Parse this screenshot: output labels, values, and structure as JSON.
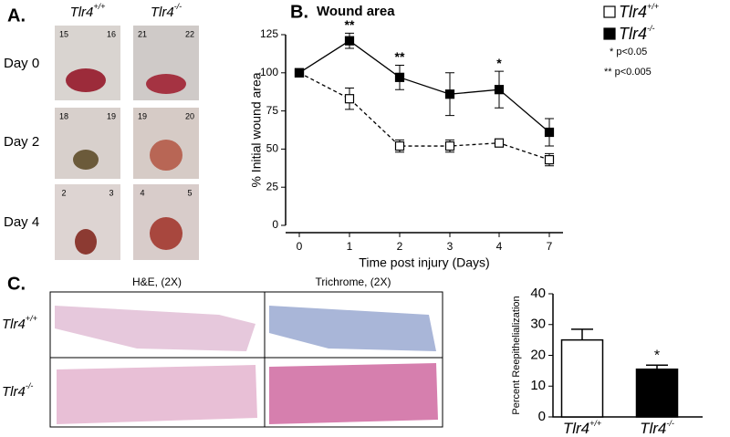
{
  "panel_a": {
    "label": "A.",
    "columns": [
      {
        "text": "Tlr4",
        "sup": "+/+"
      },
      {
        "text": "Tlr4",
        "sup": "-/-"
      }
    ],
    "rows": [
      "Day 0",
      "Day 2",
      "Day 4"
    ],
    "rulers": [
      [
        "15",
        "16",
        "21",
        "22"
      ],
      [
        "18",
        "19",
        "19",
        "20"
      ],
      [
        "2",
        "3",
        "4",
        "5"
      ]
    ]
  },
  "panel_c": {
    "label": "C.",
    "columns": [
      "H&E, (2X)",
      "Trichrome, (2X)"
    ],
    "rows": [
      {
        "text": "Tlr4",
        "sup": "+/+"
      },
      {
        "text": "Tlr4",
        "sup": "-/-"
      }
    ]
  },
  "chart_data": [
    {
      "type": "line",
      "label": "B.",
      "title": "Wound area",
      "xlabel": "Time post injury (Days)",
      "ylabel": "% Initial wound area",
      "categories": [
        "0",
        "1",
        "2",
        "3",
        "4",
        "7"
      ],
      "ylim": [
        0,
        125
      ],
      "yticks": [
        0,
        25,
        50,
        75,
        100,
        125
      ],
      "series": [
        {
          "name": "Tlr4",
          "name_sup": "+/+",
          "color": "#000",
          "marker_fill": "#fff",
          "dash": true,
          "values": [
            100,
            83,
            52,
            52,
            54,
            43
          ],
          "errors": [
            0,
            7,
            4,
            4,
            2,
            4
          ]
        },
        {
          "name": "Tlr4",
          "name_sup": "-/-",
          "color": "#000",
          "marker_fill": "#000",
          "dash": false,
          "values": [
            100,
            121,
            97,
            86,
            89,
            61
          ],
          "errors": [
            0,
            5,
            8,
            14,
            12,
            9
          ]
        }
      ],
      "annotations": [
        {
          "index": 1,
          "text": "**"
        },
        {
          "index": 2,
          "text": "**"
        },
        {
          "index": 4,
          "text": "*"
        }
      ],
      "notes": [
        "* p<0.05",
        "** p<0.005"
      ]
    },
    {
      "type": "bar",
      "ylabel": "Percent Reepithelialization",
      "categories": [
        {
          "text": "Tlr4",
          "sup": "+/+"
        },
        {
          "text": "Tlr4",
          "sup": "-/-"
        }
      ],
      "values": [
        25,
        15.5
      ],
      "errors": [
        3.5,
        1.3
      ],
      "colors": [
        "#fff",
        "#000"
      ],
      "ylim": [
        0,
        40
      ],
      "yticks": [
        0,
        10,
        20,
        30,
        40
      ],
      "annotations": [
        {
          "index": 1,
          "text": "*"
        }
      ]
    }
  ]
}
